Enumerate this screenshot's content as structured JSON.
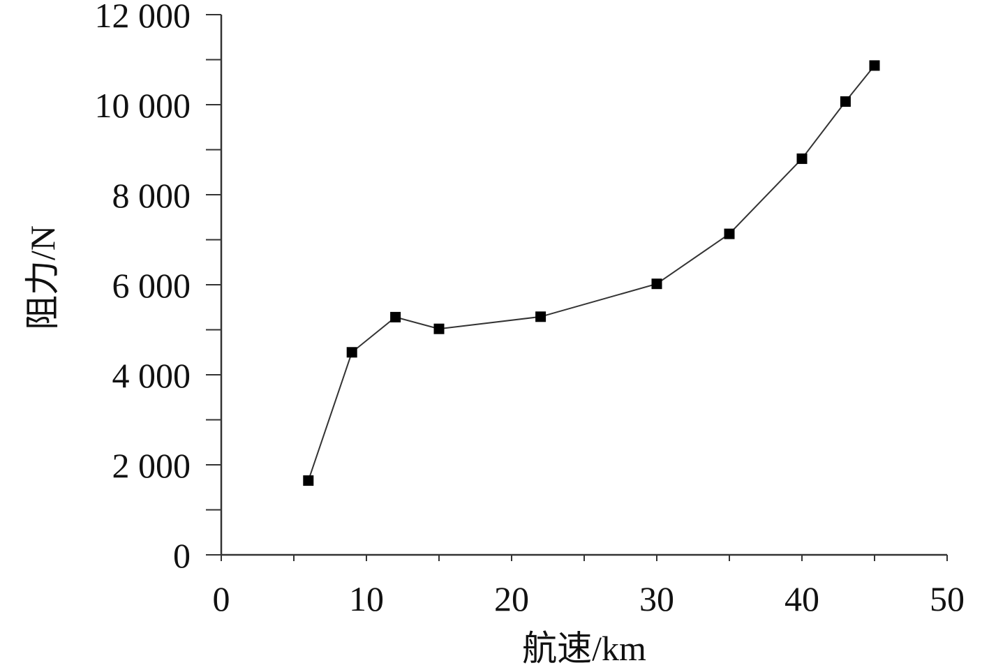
{
  "chart_data": {
    "type": "line",
    "xlabel": "航速/km",
    "ylabel": "阻力/N",
    "xlim": [
      0,
      50
    ],
    "ylim": [
      0,
      12000
    ],
    "x_ticks": [
      0,
      10,
      20,
      30,
      40,
      50
    ],
    "x_tick_labels": [
      "0",
      "10",
      "20",
      "30",
      "40",
      "50"
    ],
    "y_ticks": [
      0,
      2000,
      4000,
      6000,
      8000,
      10000,
      12000
    ],
    "y_tick_labels": [
      "0",
      "2 000",
      "4 000",
      "6 000",
      "8 000",
      "10 000",
      "12 000"
    ],
    "minor_x_step": 5,
    "minor_y_step": 1000,
    "grid": false,
    "marker": "square",
    "series": [
      {
        "x": [
          6,
          9,
          12,
          15,
          22,
          30,
          35,
          40,
          43,
          45
        ],
        "y": [
          1650,
          4500,
          5280,
          5020,
          5290,
          6020,
          7130,
          8800,
          10070,
          10870
        ]
      }
    ],
    "colors": {
      "line": "#333333",
      "marker": "#000000",
      "axis": "#333333"
    }
  }
}
